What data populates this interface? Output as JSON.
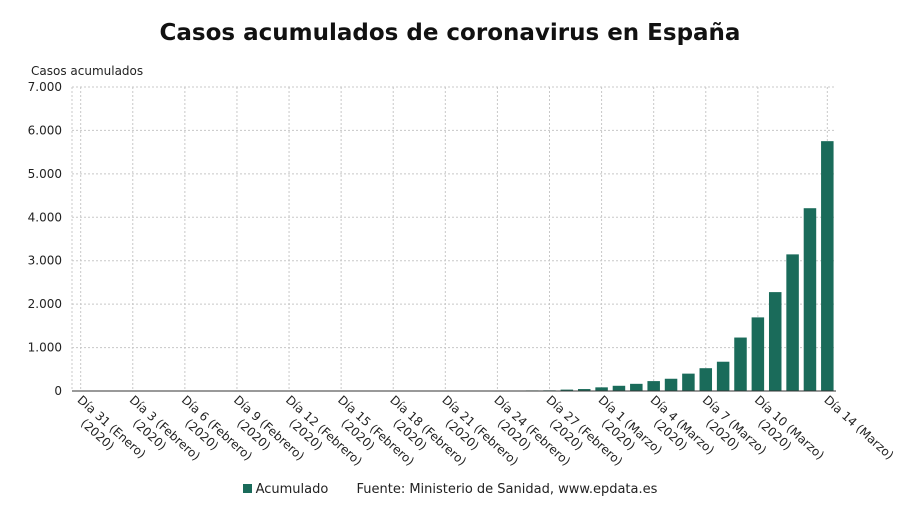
{
  "chart_data": {
    "type": "bar",
    "title": "Casos acumulados de coronavirus en España",
    "ylabel": "Casos acumulados",
    "xlabel": "",
    "ylim": [
      0,
      7000
    ],
    "yticks": [
      "0",
      "1.000",
      "2.000",
      "3.000",
      "4.000",
      "5.000",
      "6.000",
      "7.000"
    ],
    "ytick_values": [
      0,
      1000,
      2000,
      3000,
      4000,
      5000,
      6000,
      7000
    ],
    "grid": true,
    "legend_position": "bottom",
    "x_tick_labels": [
      {
        "line1": "Día 31 (Enero)",
        "line2": "(2020)"
      },
      {
        "line1": "Día 3 (Febrero)",
        "line2": "(2020)"
      },
      {
        "line1": "Día 6 (Febrero)",
        "line2": "(2020)"
      },
      {
        "line1": "Día 9 (Febrero)",
        "line2": "(2020)"
      },
      {
        "line1": "Día 12 (Febrero)",
        "line2": "(2020)"
      },
      {
        "line1": "Día 15 (Febrero)",
        "line2": "(2020)"
      },
      {
        "line1": "Día 18 (Febrero)",
        "line2": "(2020)"
      },
      {
        "line1": "Día 21 (Febrero)",
        "line2": "(2020)"
      },
      {
        "line1": "Día 24 (Febrero)",
        "line2": "(2020)"
      },
      {
        "line1": "Día 27 (Febrero)",
        "line2": "(2020)"
      },
      {
        "line1": "Día 1 (Marzo)",
        "line2": "(2020)"
      },
      {
        "line1": "Día 4 (Marzo)",
        "line2": "(2020)"
      },
      {
        "line1": "Día 7 (Marzo)",
        "line2": "(2020)"
      },
      {
        "line1": "Día 10 (Marzo)",
        "line2": "(2020)"
      },
      {
        "line1": "Día 14 (Marzo)",
        "line2": ""
      }
    ],
    "x_tick_category_index": [
      0,
      3,
      6,
      9,
      12,
      15,
      18,
      21,
      24,
      27,
      30,
      33,
      36,
      39,
      43
    ],
    "categories": [
      "31 Ene",
      "1 Feb",
      "2 Feb",
      "3 Feb",
      "4 Feb",
      "5 Feb",
      "6 Feb",
      "7 Feb",
      "8 Feb",
      "9 Feb",
      "10 Feb",
      "11 Feb",
      "12 Feb",
      "13 Feb",
      "14 Feb",
      "15 Feb",
      "16 Feb",
      "17 Feb",
      "18 Feb",
      "19 Feb",
      "20 Feb",
      "21 Feb",
      "22 Feb",
      "23 Feb",
      "24 Feb",
      "25 Feb",
      "26 Feb",
      "27 Feb",
      "28 Feb",
      "29 Feb",
      "1 Mar",
      "2 Mar",
      "3 Mar",
      "4 Mar",
      "5 Mar",
      "6 Mar",
      "7 Mar",
      "8 Mar",
      "9 Mar",
      "10 Mar",
      "11 Mar",
      "12 Mar",
      "13 Mar",
      "14 Mar"
    ],
    "series": [
      {
        "name": "Acumulado",
        "color": "#1a6b5a",
        "values": [
          1,
          1,
          1,
          1,
          1,
          1,
          1,
          1,
          1,
          2,
          2,
          2,
          2,
          2,
          2,
          2,
          2,
          2,
          2,
          2,
          2,
          2,
          2,
          2,
          3,
          6,
          13,
          15,
          32,
          45,
          84,
          120,
          165,
          228,
          282,
          400,
          525,
          674,
          1231,
          1695,
          2277,
          3146,
          4209,
          5753
        ]
      }
    ],
    "source": "Fuente: Ministerio de Sanidad, www.epdata.es"
  }
}
